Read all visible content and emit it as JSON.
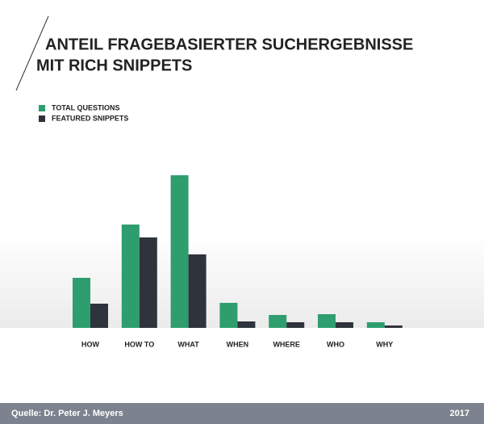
{
  "chart_data": {
    "type": "bar",
    "title": [
      "ANTEIL FRAGEBASIERTER SUCHERGEBNISSE",
      "MIT RICH SNIPPETS"
    ],
    "categories": [
      "HOW",
      "HOW TO",
      "WHAT",
      "WHEN",
      "WHERE",
      "WHO",
      "WHY"
    ],
    "series": [
      {
        "name": "TOTAL QUESTIONS",
        "color": "#2e9e6e",
        "values": [
          62,
          128,
          189,
          31,
          16,
          17,
          7
        ]
      },
      {
        "name": "FEATURED SNIPPETS",
        "color": "#2f333b",
        "values": [
          30,
          112,
          91,
          8,
          7,
          7,
          3
        ]
      }
    ],
    "ylim": [
      0,
      200
    ],
    "source": "Quelle: Dr. Peter J. Meyers",
    "date": "2017"
  }
}
